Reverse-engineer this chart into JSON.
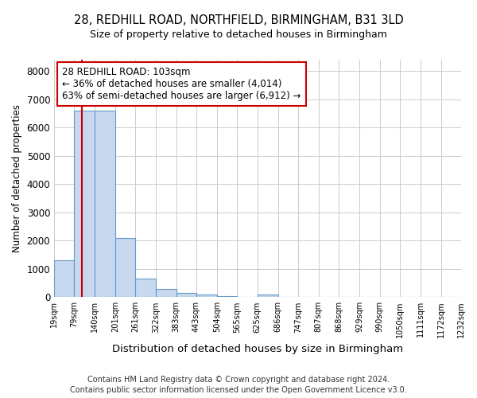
{
  "title1": "28, REDHILL ROAD, NORTHFIELD, BIRMINGHAM, B31 3LD",
  "title2": "Size of property relative to detached houses in Birmingham",
  "xlabel": "Distribution of detached houses by size in Birmingham",
  "ylabel": "Number of detached properties",
  "bin_edges": [
    19,
    79,
    140,
    201,
    261,
    322,
    383,
    443,
    504,
    565,
    625,
    686,
    747,
    807,
    868,
    929,
    990,
    1050,
    1111,
    1172,
    1232
  ],
  "bar_heights": [
    1300,
    6600,
    6600,
    2100,
    650,
    300,
    150,
    100,
    50,
    20,
    100,
    5,
    4,
    3,
    2,
    1,
    1,
    1,
    1,
    1
  ],
  "bar_color": "#c8d8ee",
  "bar_edgecolor": "#6699cc",
  "property_size": 103,
  "vline_color": "#cc0000",
  "annotation_line1": "28 REDHILL ROAD: 103sqm",
  "annotation_line2": "← 36% of detached houses are smaller (4,014)",
  "annotation_line3": "63% of semi-detached houses are larger (6,912) →",
  "annotation_box_color": "#ffffff",
  "annotation_box_edgecolor": "#cc0000",
  "ylim": [
    0,
    8400
  ],
  "yticks": [
    0,
    1000,
    2000,
    3000,
    4000,
    5000,
    6000,
    7000,
    8000
  ],
  "footer1": "Contains HM Land Registry data © Crown copyright and database right 2024.",
  "footer2": "Contains public sector information licensed under the Open Government Licence v3.0.",
  "background_color": "#ffffff",
  "grid_color": "#cccccc"
}
